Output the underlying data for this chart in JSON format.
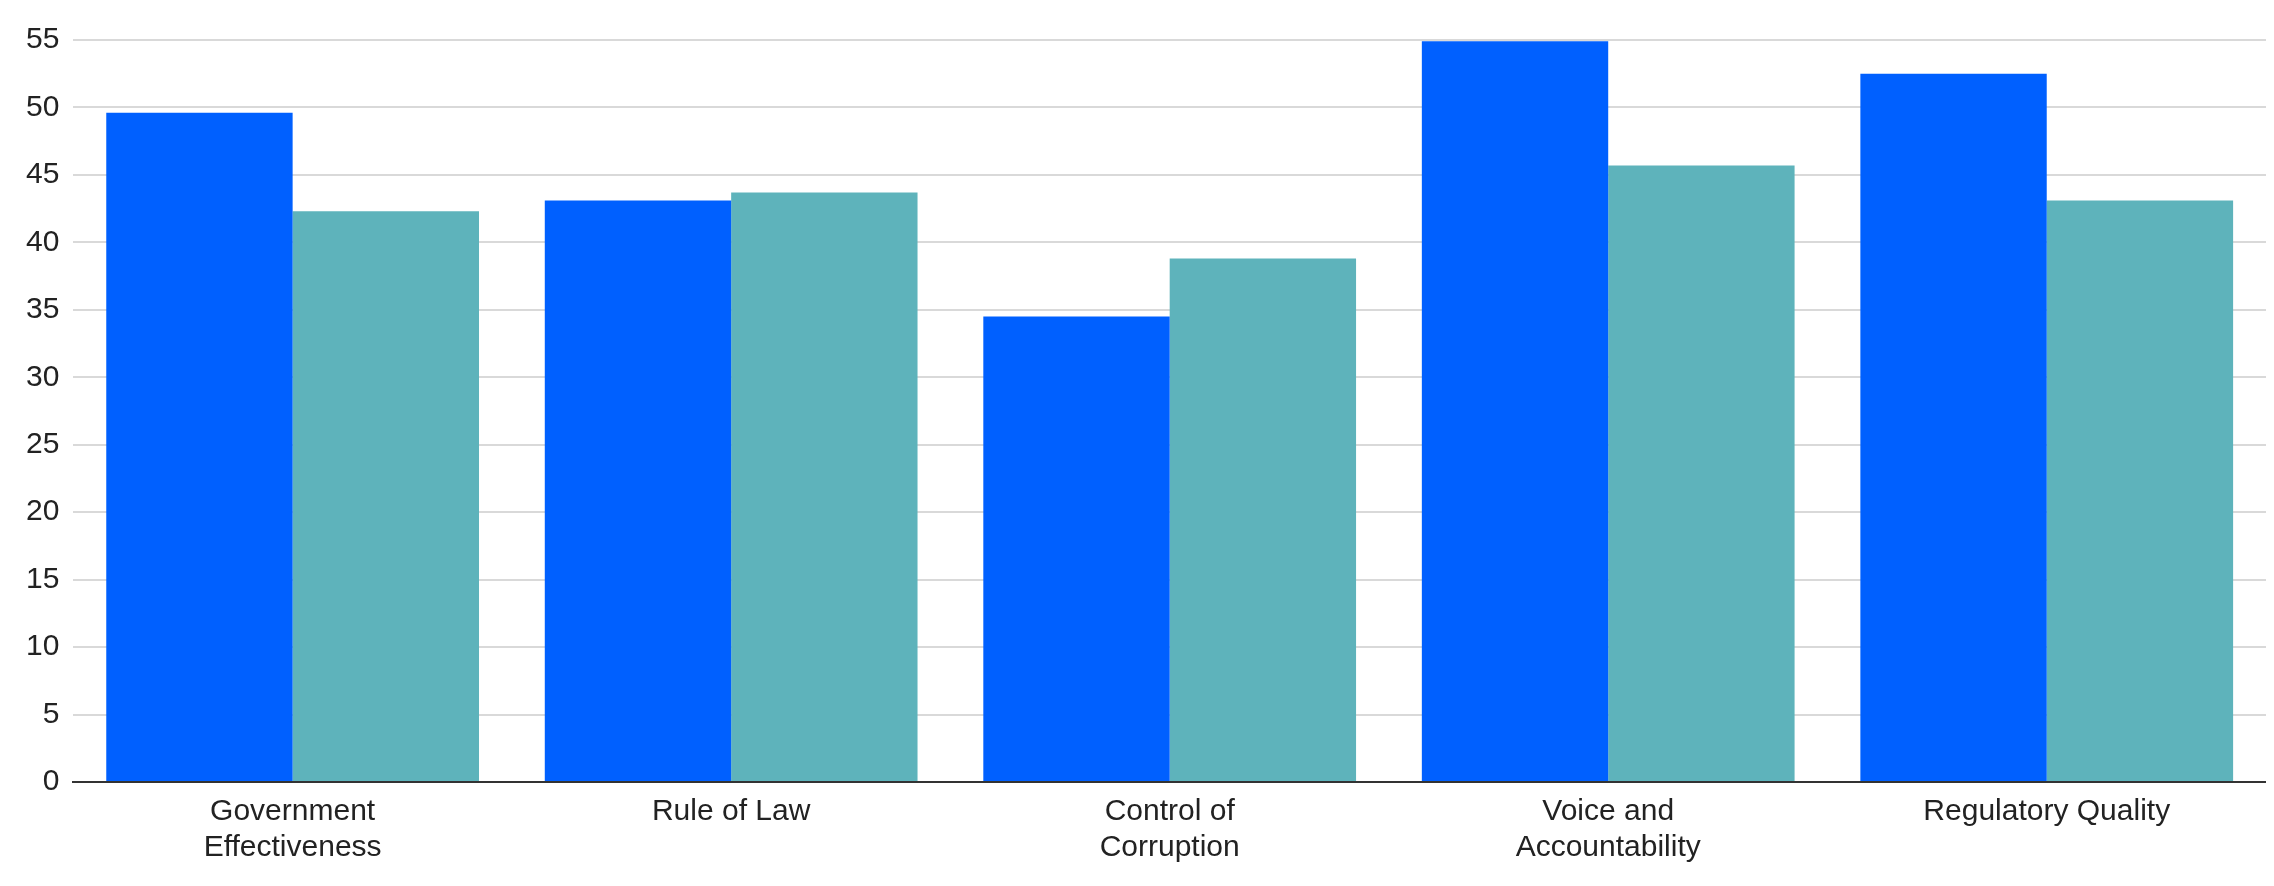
{
  "chart_data": {
    "type": "bar",
    "categories": [
      "Government Effectiveness",
      "Rule of Law",
      "Control of Corruption",
      "Voice and Accountability",
      "Regulatory Quality"
    ],
    "series": [
      {
        "color": "#0060ff",
        "values": [
          49.6,
          43.1,
          34.5,
          54.9,
          52.5
        ]
      },
      {
        "color": "#5eb3bb",
        "values": [
          42.3,
          43.7,
          38.8,
          45.7,
          43.1
        ]
      }
    ],
    "ylim": [
      0,
      55
    ],
    "yticks": [
      0,
      5,
      10,
      15,
      20,
      25,
      30,
      35,
      40,
      45,
      50,
      55
    ],
    "grid": "y",
    "legend": false
  }
}
